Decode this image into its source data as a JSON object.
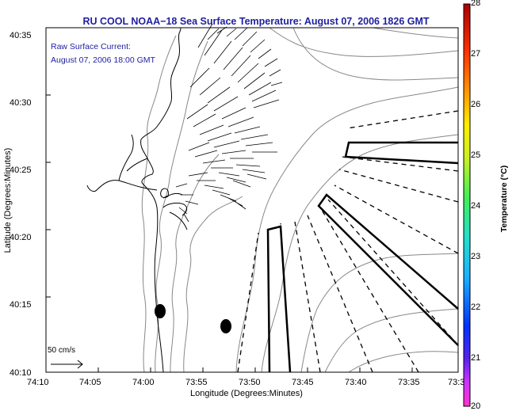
{
  "title": "RU COOL  NOAA−18  Sea Surface Temperature:  August 07, 2006 1826 GMT",
  "annotation": {
    "line1": "Raw Surface Current:",
    "line2": "August 07, 2006 18:00 GMT"
  },
  "scale_label": "50 cm/s",
  "axes": {
    "xlabel": "Longitude (Degrees:Minutes)",
    "ylabel": "Latitude (Degrees:Minutes)",
    "xticks": [
      "74:10",
      "74:05",
      "74:00",
      "73:55",
      "73:50",
      "73:45",
      "73:40",
      "73:35",
      "73:3"
    ],
    "yticks": [
      "40:35",
      "40:30",
      "40:25",
      "40:20",
      "40:15",
      "40:10"
    ]
  },
  "colorbar": {
    "label": "Temperature (°C)",
    "ticks": [
      "28",
      "27",
      "26",
      "25",
      "24",
      "23",
      "22",
      "21",
      "20"
    ],
    "min": 20,
    "max": 28
  }
}
